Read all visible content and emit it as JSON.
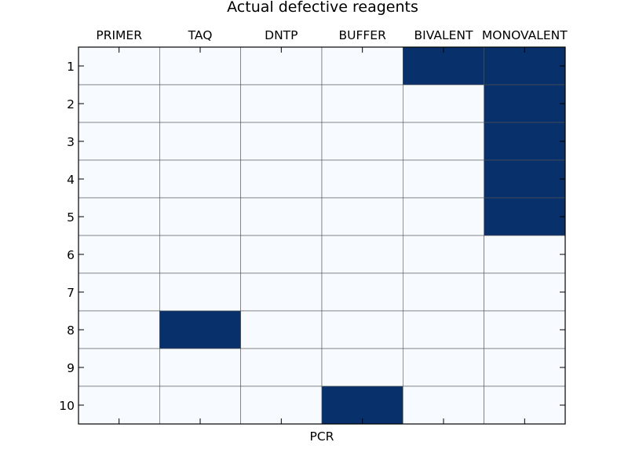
{
  "chart_data": {
    "type": "heatmap",
    "title": "Actual defective reagents",
    "xlabel": "PCR",
    "ylabel": "",
    "columns": [
      "PRIMER",
      "TAQ",
      "DNTP",
      "BUFFER",
      "BIVALENT",
      "MONOVALENT"
    ],
    "rows": [
      "1",
      "2",
      "3",
      "4",
      "5",
      "6",
      "7",
      "8",
      "9",
      "10"
    ],
    "values": [
      [
        0,
        0,
        0,
        0,
        1,
        1
      ],
      [
        0,
        0,
        0,
        0,
        0,
        1
      ],
      [
        0,
        0,
        0,
        0,
        0,
        1
      ],
      [
        0,
        0,
        0,
        0,
        0,
        1
      ],
      [
        0,
        0,
        0,
        0,
        0,
        1
      ],
      [
        0,
        0,
        0,
        0,
        0,
        0
      ],
      [
        0,
        0,
        0,
        0,
        0,
        0
      ],
      [
        0,
        1,
        0,
        0,
        0,
        0
      ],
      [
        0,
        0,
        0,
        0,
        0,
        0
      ],
      [
        0,
        0,
        0,
        1,
        0,
        0
      ]
    ],
    "value_range": [
      0,
      1
    ],
    "colormap": "Blues",
    "color_low": "#f7fbff",
    "color_high": "#08306b",
    "grid": true,
    "x_ticks_position": "top"
  }
}
